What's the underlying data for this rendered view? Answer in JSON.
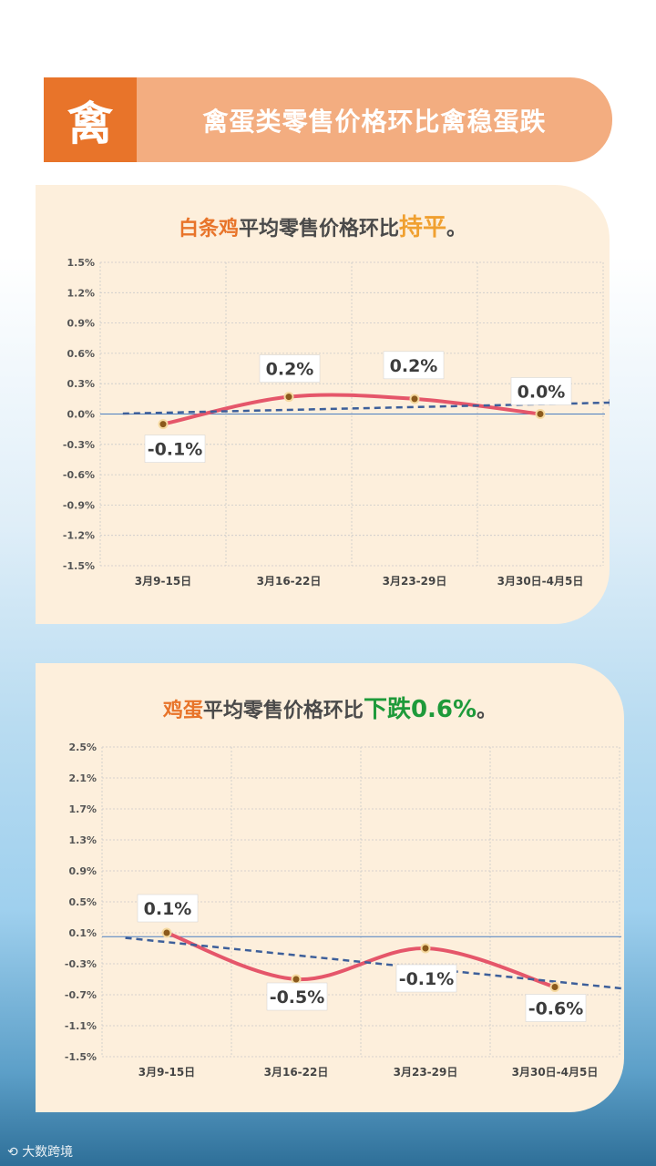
{
  "header": {
    "badge": "禽",
    "title": "禽蛋类零售价格环比禽稳蛋跌"
  },
  "charts": [
    {
      "title_prefix": "白条鸡",
      "title_mid": "平均零售价格环比",
      "title_highlight": "持平",
      "title_suffix": "。"
    },
    {
      "title_prefix": "鸡蛋",
      "title_mid": "平均零售价格环比",
      "title_highlight": "下跌0.6%",
      "title_suffix": "。"
    }
  ],
  "chart_data": [
    {
      "type": "line",
      "categories": [
        "3月9-15日",
        "3月16-22日",
        "3月23-29日",
        "3月30日-4月5日"
      ],
      "values": [
        -0.1,
        0.17,
        0.15,
        0.0
      ],
      "data_labels": [
        "-0.1%",
        "0.2%",
        "0.2%",
        "0.0%"
      ],
      "y_ticks": [
        "1.5%",
        "1.2%",
        "0.9%",
        "0.6%",
        "0.3%",
        "0.0%",
        "-0.3%",
        "-0.6%",
        "-0.9%",
        "-1.2%",
        "-1.5%"
      ],
      "ylim": [
        -1.5,
        1.5
      ],
      "trendline": true,
      "grid": true
    },
    {
      "type": "line",
      "categories": [
        "3月9-15日",
        "3月16-22日",
        "3月23-29日",
        "3月30日-4月5日"
      ],
      "values": [
        0.1,
        -0.5,
        -0.1,
        -0.6
      ],
      "data_labels": [
        "0.1%",
        "-0.5%",
        "-0.1%",
        "-0.6%"
      ],
      "y_ticks": [
        "2.5%",
        "2.1%",
        "1.7%",
        "1.3%",
        "0.9%",
        "0.5%",
        "0.1%",
        "-0.3%",
        "-0.7%",
        "-1.1%",
        "-1.5%"
      ],
      "ylim": [
        -1.5,
        2.5
      ],
      "trendline": true,
      "grid": true
    }
  ],
  "colors": {
    "line": "#e5566a",
    "trend": "#3d5f9a",
    "point": "#8b5a1c",
    "accent": "#e8742a"
  },
  "footer": {
    "watermark": "大数跨境"
  }
}
